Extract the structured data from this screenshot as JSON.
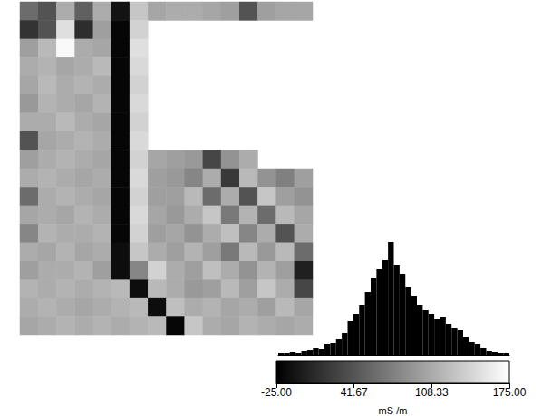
{
  "chart_data": [
    {
      "type": "heatmap",
      "tick_labels": false,
      "values": [
        [
          60,
          40,
          110,
          50,
          110,
          -10,
          130,
          105,
          110,
          110,
          105,
          100,
          40,
          100,
          105,
          105
        ],
        [
          15,
          40,
          150,
          10,
          100,
          -20,
          140,
          null,
          null,
          null,
          null,
          null,
          null,
          null,
          null,
          null
        ],
        [
          100,
          120,
          170,
          110,
          105,
          -20,
          150,
          null,
          null,
          null,
          null,
          null,
          null,
          null,
          null,
          null
        ],
        [
          110,
          115,
          105,
          110,
          120,
          -20,
          145,
          null,
          null,
          null,
          null,
          null,
          null,
          null,
          null,
          null
        ],
        [
          105,
          120,
          110,
          115,
          110,
          -20,
          140,
          null,
          null,
          null,
          null,
          null,
          null,
          null,
          null,
          null
        ],
        [
          95,
          115,
          110,
          105,
          115,
          -20,
          145,
          null,
          null,
          null,
          null,
          null,
          null,
          null,
          null,
          null
        ],
        [
          110,
          110,
          120,
          110,
          105,
          -20,
          140,
          null,
          null,
          null,
          null,
          null,
          null,
          null,
          null,
          null
        ],
        [
          40,
          105,
          110,
          115,
          110,
          -20,
          145,
          null,
          null,
          null,
          null,
          null,
          null,
          null,
          null,
          null
        ],
        [
          100,
          110,
          115,
          110,
          105,
          -20,
          140,
          105,
          100,
          95,
          30,
          90,
          110,
          null,
          null,
          null
        ],
        [
          110,
          115,
          110,
          105,
          110,
          -20,
          145,
          100,
          95,
          80,
          110,
          20,
          120,
          90,
          75,
          100
        ],
        [
          60,
          110,
          115,
          110,
          105,
          -20,
          140,
          100,
          100,
          120,
          60,
          110,
          40,
          130,
          100,
          90
        ],
        [
          105,
          110,
          105,
          115,
          110,
          -20,
          145,
          105,
          95,
          110,
          130,
          70,
          115,
          60,
          120,
          105
        ],
        [
          80,
          115,
          110,
          110,
          115,
          -20,
          140,
          100,
          105,
          90,
          110,
          125,
          80,
          110,
          40,
          110
        ],
        [
          110,
          105,
          115,
          105,
          110,
          -15,
          130,
          110,
          100,
          115,
          100,
          70,
          120,
          95,
          120,
          60
        ],
        [
          100,
          110,
          110,
          115,
          100,
          -15,
          80,
          140,
          110,
          100,
          125,
          110,
          90,
          115,
          100,
          0
        ],
        [
          115,
          110,
          115,
          110,
          115,
          120,
          -15,
          120,
          110,
          95,
          100,
          120,
          100,
          130,
          110,
          30
        ],
        [
          110,
          115,
          110,
          105,
          110,
          115,
          120,
          -15,
          125,
          110,
          115,
          105,
          110,
          100,
          120,
          105
        ],
        [
          105,
          110,
          115,
          110,
          115,
          110,
          115,
          120,
          -20,
          130,
          110,
          105,
          115,
          110,
          105,
          110
        ]
      ],
      "colorbar": {
        "range": [
          -25,
          175
        ],
        "ticks": [
          {
            "value": -25,
            "label": "-25.00"
          },
          41.67,
          108.33,
          {
            "value": 175,
            "label": "175.00"
          }
        ],
        "label": "mS /m"
      }
    },
    {
      "type": "histogram",
      "tick_labels": false,
      "color": "#000000",
      "xlim": [
        -25,
        175
      ],
      "ylim": [
        0,
        130
      ],
      "bins": [
        -25,
        -20,
        -15,
        -10,
        -5,
        0,
        5,
        10,
        15,
        20,
        25,
        30,
        35,
        40,
        45,
        50,
        55,
        60,
        65,
        70,
        75,
        80,
        85,
        90,
        95,
        100,
        105,
        110,
        115,
        120,
        125,
        130,
        135,
        140,
        145,
        150,
        155,
        160,
        165,
        170,
        175
      ],
      "counts": [
        3,
        2,
        4,
        3,
        5,
        6,
        8,
        7,
        12,
        14,
        18,
        25,
        38,
        45,
        55,
        70,
        85,
        95,
        105,
        125,
        100,
        90,
        75,
        65,
        55,
        50,
        45,
        40,
        42,
        35,
        30,
        28,
        20,
        15,
        12,
        8,
        5,
        4,
        3,
        2
      ]
    }
  ]
}
